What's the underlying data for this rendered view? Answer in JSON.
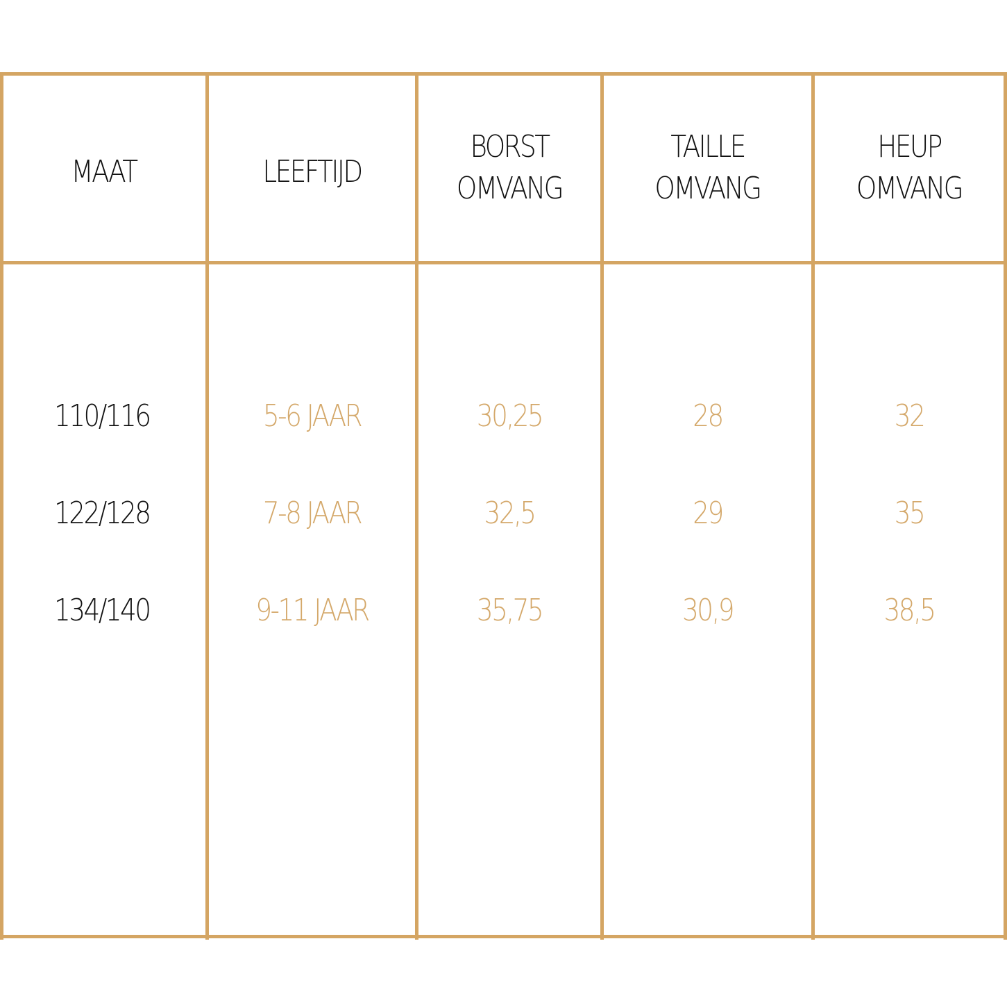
{
  "colors": {
    "border": "#D4A563",
    "value_text": "#D4A86A",
    "header_text": "#111111"
  },
  "headers": [
    [
      "MAAT"
    ],
    [
      "LEEFTIJD"
    ],
    [
      "BORST",
      "OMVANG"
    ],
    [
      "TAILLE",
      "OMVANG"
    ],
    [
      "HEUP",
      "OMVANG"
    ]
  ],
  "rows": [
    [
      "110/116",
      "5-6 JAAR",
      "30,25",
      "28",
      "32"
    ],
    [
      "122/128",
      "7-8 JAAR",
      "32,5",
      "29",
      "35"
    ],
    [
      "134/140",
      "9-11 JAAR",
      "35,75",
      "30,9",
      "38,5"
    ]
  ]
}
